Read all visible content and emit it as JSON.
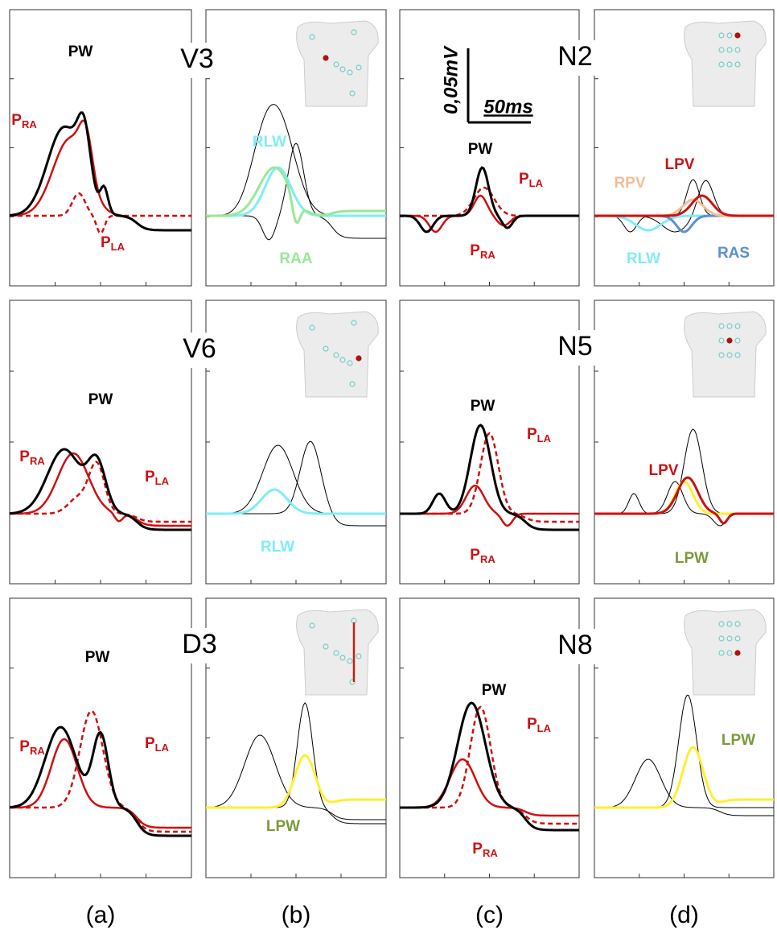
{
  "panels": [
    {
      "labels": [
        {
          "text": "PW",
          "color": "#000000"
        },
        {
          "text": "P",
          "sub": "RA",
          "color": "#cc1111"
        },
        {
          "text": "P",
          "sub": "LA",
          "color": "#cc1111"
        }
      ]
    },
    {
      "lead": "V3",
      "labels": [
        {
          "text": "RLW",
          "color": "#80ecf4"
        },
        {
          "text": "RAA",
          "color": "#98e898"
        }
      ]
    },
    {
      "scale": {
        "vertical": "0,05mV",
        "horizontal": "50ms"
      },
      "labels": [
        {
          "text": "PW",
          "color": "#000000"
        },
        {
          "text": "P",
          "sub": "LA",
          "color": "#cc1111"
        },
        {
          "text": "P",
          "sub": "RA",
          "color": "#cc1111"
        }
      ]
    },
    {
      "lead": "N2",
      "labels": [
        {
          "text": "RPV",
          "color": "#f2be96"
        },
        {
          "text": "LPV",
          "color": "#cc1111"
        },
        {
          "text": "RLW",
          "color": "#80ecf4"
        },
        {
          "text": "RAS",
          "color": "#5b8fd6"
        }
      ]
    },
    {
      "labels": [
        {
          "text": "PW",
          "color": "#000000"
        },
        {
          "text": "P",
          "sub": "RA",
          "color": "#cc1111"
        },
        {
          "text": "P",
          "sub": "LA",
          "color": "#cc1111"
        }
      ]
    },
    {
      "lead": "V6",
      "labels": [
        {
          "text": "RLW",
          "color": "#80ecf4"
        }
      ]
    },
    {
      "labels": [
        {
          "text": "PW",
          "color": "#000000"
        },
        {
          "text": "P",
          "sub": "LA",
          "color": "#cc1111"
        },
        {
          "text": "P",
          "sub": "RA",
          "color": "#cc1111"
        }
      ]
    },
    {
      "lead": "N5",
      "labels": [
        {
          "text": "LPV",
          "color": "#cc1111"
        },
        {
          "text": "LPW",
          "color": "#7a9a3a"
        }
      ]
    },
    {
      "labels": [
        {
          "text": "PW",
          "color": "#000000"
        },
        {
          "text": "P",
          "sub": "RA",
          "color": "#cc1111"
        },
        {
          "text": "P",
          "sub": "LA",
          "color": "#cc1111"
        }
      ]
    },
    {
      "lead": "D3",
      "labels": [
        {
          "text": "LPW",
          "color": "#7a9a3a"
        }
      ]
    },
    {
      "labels": [
        {
          "text": "PW",
          "color": "#000000"
        },
        {
          "text": "P",
          "sub": "LA",
          "color": "#cc1111"
        },
        {
          "text": "P",
          "sub": "RA",
          "color": "#cc1111"
        }
      ]
    },
    {
      "lead": "N8",
      "labels": [
        {
          "text": "LPW",
          "color": "#7a9a3a"
        }
      ]
    }
  ],
  "column_labels": [
    "(a)",
    "(b)",
    "(c)",
    "(d)"
  ]
}
